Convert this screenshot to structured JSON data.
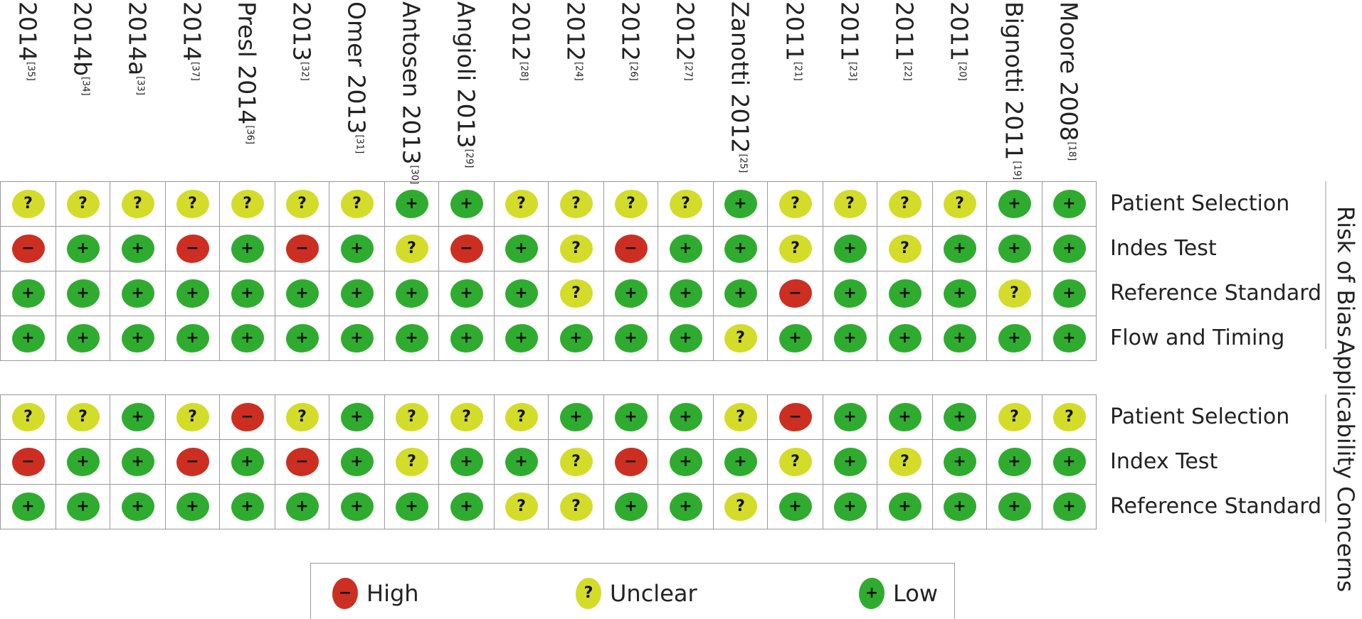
{
  "studies": [
    {
      "label": "2014",
      "ref": "[35]"
    },
    {
      "label": "2014b",
      "ref": "[34]"
    },
    {
      "label": "2014a",
      "ref": "[33]"
    },
    {
      "label": "2014",
      "ref": "[37]"
    },
    {
      "label": "Presl 2014",
      "ref": "[36]"
    },
    {
      "label": "2013",
      "ref": "[32]"
    },
    {
      "label": "Omer 2013",
      "ref": "[31]"
    },
    {
      "label": "Antosen 2013",
      "ref": "[30]"
    },
    {
      "label": "Angioli 2013",
      "ref": "[29]"
    },
    {
      "label": "2012",
      "ref": "[28]"
    },
    {
      "label": "2012",
      "ref": "[24]"
    },
    {
      "label": "2012",
      "ref": "[26]"
    },
    {
      "label": "2012",
      "ref": "[27]"
    },
    {
      "label": "Zanotti 2012",
      "ref": "[25]"
    },
    {
      "label": "2011",
      "ref": "[21]"
    },
    {
      "label": "2011",
      "ref": "[23]"
    },
    {
      "label": "2011",
      "ref": "[22]"
    },
    {
      "label": "2011",
      "ref": "[20]"
    },
    {
      "label": "Bignotti 2011",
      "ref": "[19]"
    },
    {
      "label": "Moore 2008",
      "ref": "[18]"
    }
  ],
  "symbols": {
    "high": "−",
    "unclear": "?",
    "low": "+"
  },
  "colors": {
    "high": "#cc2f22",
    "unclear": "#d4dc2a",
    "low": "#2fac2f"
  },
  "risk_of_bias": {
    "title": "Risk of Bias",
    "rows": [
      {
        "label": "Patient Selection",
        "cells": [
          "unclear",
          "unclear",
          "unclear",
          "unclear",
          "unclear",
          "unclear",
          "unclear",
          "low",
          "low",
          "unclear",
          "unclear",
          "unclear",
          "unclear",
          "low",
          "unclear",
          "unclear",
          "unclear",
          "unclear",
          "low",
          "low"
        ]
      },
      {
        "label": "Indes Test",
        "cells": [
          "high",
          "low",
          "low",
          "high",
          "low",
          "high",
          "low",
          "unclear",
          "high",
          "low",
          "unclear",
          "high",
          "low",
          "low",
          "unclear",
          "low",
          "unclear",
          "low",
          "low",
          "low"
        ]
      },
      {
        "label": "Reference Standard",
        "cells": [
          "low",
          "low",
          "low",
          "low",
          "low",
          "low",
          "low",
          "low",
          "low",
          "low",
          "unclear",
          "low",
          "low",
          "low",
          "high",
          "low",
          "low",
          "low",
          "unclear",
          "low"
        ]
      },
      {
        "label": "Flow and Timing",
        "cells": [
          "low",
          "low",
          "low",
          "low",
          "low",
          "low",
          "low",
          "low",
          "low",
          "low",
          "low",
          "low",
          "low",
          "unclear",
          "low",
          "low",
          "low",
          "low",
          "low",
          "low"
        ]
      }
    ]
  },
  "applicability": {
    "title": "Applicability Concerns",
    "rows": [
      {
        "label": "Patient Selection",
        "cells": [
          "unclear",
          "unclear",
          "low",
          "unclear",
          "high",
          "unclear",
          "low",
          "unclear",
          "unclear",
          "unclear",
          "low",
          "low",
          "low",
          "unclear",
          "high",
          "low",
          "low",
          "low",
          "unclear",
          "unclear"
        ]
      },
      {
        "label": "Index Test",
        "cells": [
          "high",
          "low",
          "low",
          "high",
          "low",
          "high",
          "low",
          "unclear",
          "low",
          "low",
          "unclear",
          "high",
          "low",
          "low",
          "unclear",
          "low",
          "unclear",
          "low",
          "low",
          "low"
        ]
      },
      {
        "label": "Reference Standard",
        "cells": [
          "low",
          "low",
          "low",
          "low",
          "low",
          "low",
          "low",
          "low",
          "low",
          "unclear",
          "unclear",
          "low",
          "low",
          "unclear",
          "low",
          "low",
          "low",
          "low",
          "low",
          "low"
        ]
      }
    ]
  },
  "legend": [
    {
      "key": "high",
      "label": "High"
    },
    {
      "key": "unclear",
      "label": "Unclear"
    },
    {
      "key": "low",
      "label": "Low"
    }
  ]
}
